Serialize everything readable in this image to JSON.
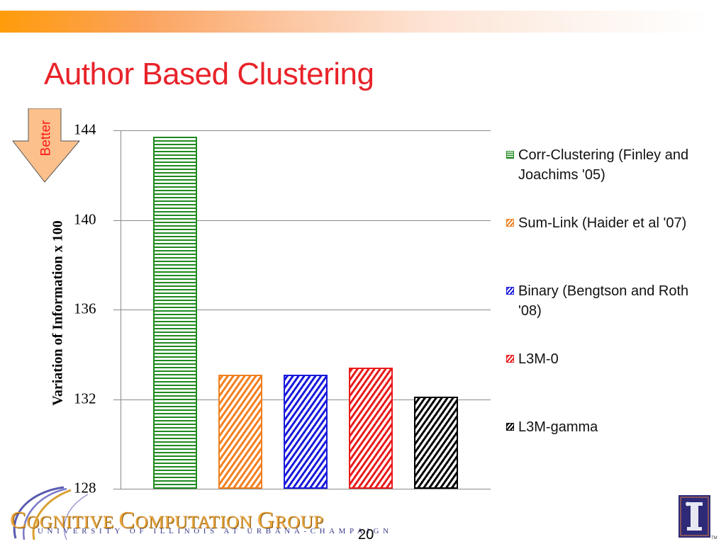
{
  "slide": {
    "title": "Author Based Clustering",
    "page_number": "20",
    "better_label": "Better",
    "footer": {
      "group_name_parts": [
        "C",
        "OGNITIVE ",
        "C",
        "OMPUTATION ",
        "G",
        "ROUP"
      ],
      "university": "UNIVERSITY OF ILLINOIS AT URBANA-CHAMPAIGN",
      "trademark": "TM"
    },
    "colors": {
      "title": "#e8232a",
      "better_arrow_fill": "#fbc08c",
      "better_text": "#ff1a1a"
    }
  },
  "chart_data": {
    "type": "bar",
    "title": "Author Based Clustering",
    "xlabel": "",
    "ylabel": "Variation of Information x 100",
    "ylim": [
      128,
      144
    ],
    "yticks": [
      128,
      132,
      136,
      140,
      144
    ],
    "ytick_labels": [
      "128",
      "132",
      "136",
      "140",
      "144"
    ],
    "grid": true,
    "legend_position": "right",
    "annotation": "Better (lower is better, downward arrow)",
    "categories": [
      "Corr-Clustering (Finley and Joachims '05)",
      "Sum-Link (Haider et al '07)",
      "Binary (Bengtson and Roth '08)",
      "L3M-0",
      "L3M-gamma"
    ],
    "values": [
      143.7,
      133.1,
      133.1,
      133.4,
      132.1
    ],
    "series": [
      {
        "name": "Corr-Clustering (Finley and Joachims '05)",
        "value": 143.7,
        "color": "#1f8a1f",
        "pattern": "horizontal"
      },
      {
        "name": "Sum-Link (Haider et al '07)",
        "value": 133.1,
        "color": "#f08020",
        "pattern": "diagonal"
      },
      {
        "name": "Binary (Bengtson and Roth '08)",
        "value": 133.1,
        "color": "#1a1adc",
        "pattern": "diagonal"
      },
      {
        "name": "L3M-0",
        "value": 133.4,
        "color": "#e81c1c",
        "pattern": "diagonal"
      },
      {
        "name": "L3M-gamma",
        "value": 132.1,
        "color": "#000000",
        "pattern": "diagonal"
      }
    ]
  }
}
